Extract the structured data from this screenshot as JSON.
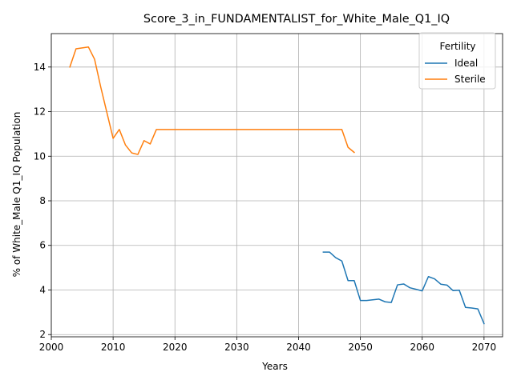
{
  "chart_data": {
    "type": "line",
    "title": "Score_3_in_FUNDAMENTALIST_for_White_Male_Q1_IQ",
    "xlabel": "Years",
    "ylabel": "% of White_Male Q1_IQ Population",
    "xlim": [
      2000,
      2073
    ],
    "ylim": [
      1.9,
      15.5
    ],
    "xticks": [
      2000,
      2010,
      2020,
      2030,
      2040,
      2050,
      2060,
      2070
    ],
    "yticks": [
      2,
      4,
      6,
      8,
      10,
      12,
      14
    ],
    "grid": true,
    "legend": {
      "title": "Fertility",
      "position": "top-right"
    },
    "series": [
      {
        "name": "Ideal",
        "color": "#1f77b4",
        "x": [
          2044,
          2045,
          2046,
          2047,
          2048,
          2049,
          2050,
          2051,
          2052,
          2053,
          2054,
          2055,
          2056,
          2057,
          2058,
          2059,
          2060,
          2061,
          2062,
          2063,
          2064,
          2065,
          2066,
          2067,
          2068,
          2069,
          2070
        ],
        "y": [
          5.7,
          5.7,
          5.45,
          5.3,
          4.42,
          4.42,
          3.53,
          3.53,
          3.56,
          3.59,
          3.47,
          3.44,
          4.23,
          4.27,
          4.1,
          4.03,
          3.96,
          4.6,
          4.5,
          4.26,
          4.22,
          3.97,
          3.99,
          3.22,
          3.19,
          3.15,
          2.49
        ]
      },
      {
        "name": "Sterile",
        "color": "#ff7f0e",
        "x": [
          2003,
          2004,
          2005,
          2006,
          2007,
          2008,
          2009,
          2010,
          2011,
          2012,
          2013,
          2014,
          2015,
          2016,
          2017,
          2018,
          2019,
          2020,
          2021,
          2022,
          2023,
          2024,
          2025,
          2026,
          2027,
          2028,
          2029,
          2030,
          2031,
          2032,
          2033,
          2034,
          2035,
          2036,
          2037,
          2038,
          2039,
          2040,
          2041,
          2042,
          2043,
          2044,
          2045,
          2046,
          2047,
          2048,
          2049
        ],
        "y": [
          14.0,
          14.82,
          14.86,
          14.9,
          14.35,
          13.1,
          11.95,
          10.8,
          11.2,
          10.5,
          10.15,
          10.08,
          10.7,
          10.55,
          11.2,
          11.2,
          11.2,
          11.2,
          11.2,
          11.2,
          11.2,
          11.2,
          11.2,
          11.2,
          11.2,
          11.2,
          11.2,
          11.2,
          11.2,
          11.2,
          11.2,
          11.2,
          11.2,
          11.2,
          11.2,
          11.2,
          11.2,
          11.2,
          11.2,
          11.2,
          11.2,
          11.2,
          11.2,
          11.2,
          11.2,
          10.4,
          10.17
        ]
      }
    ]
  }
}
